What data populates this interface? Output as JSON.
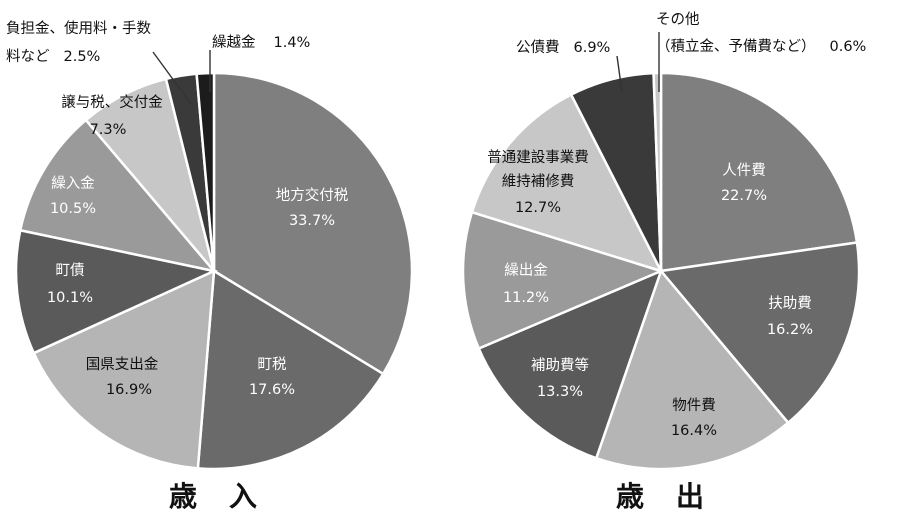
{
  "chart_data": [
    {
      "type": "pie",
      "title": "歳　入",
      "slices": [
        {
          "label": "地方交付税",
          "value": 33.7,
          "display": "33.7%",
          "color": "#7f7f7f"
        },
        {
          "label": "町税",
          "value": 17.6,
          "display": "17.6%",
          "color": "#6a6a6a"
        },
        {
          "label": "国県支出金",
          "value": 16.9,
          "display": "16.9%",
          "color": "#b5b5b5"
        },
        {
          "label": "町債",
          "value": 10.1,
          "display": "10.1%",
          "color": "#5a5a5a"
        },
        {
          "label": "繰入金",
          "value": 10.5,
          "display": "10.5%",
          "color": "#9a9a9a"
        },
        {
          "label": "譲与税、交付金",
          "value": 7.3,
          "display": "7.3%",
          "color": "#c7c7c7"
        },
        {
          "label": "負担金、使用料・手数料など",
          "value": 2.5,
          "display": "2.5%",
          "color": "#3a3a3a"
        },
        {
          "label": "繰越金",
          "value": 1.4,
          "display": "1.4%",
          "color": "#1c1c1c"
        }
      ]
    },
    {
      "type": "pie",
      "title": "歳　出",
      "slices": [
        {
          "label": "人件費",
          "value": 22.7,
          "display": "22.7%",
          "color": "#7f7f7f"
        },
        {
          "label": "扶助費",
          "value": 16.2,
          "display": "16.2%",
          "color": "#6a6a6a"
        },
        {
          "label": "物件費",
          "value": 16.4,
          "display": "16.4%",
          "color": "#b5b5b5"
        },
        {
          "label": "補助費等",
          "value": 13.3,
          "display": "13.3%",
          "color": "#5a5a5a"
        },
        {
          "label": "繰出金",
          "value": 11.2,
          "display": "11.2%",
          "color": "#9a9a9a"
        },
        {
          "label": "普通建設事業費維持補修費",
          "value": 12.7,
          "display": "12.7%",
          "color": "#c7c7c7"
        },
        {
          "label": "公債費",
          "value": 6.9,
          "display": "6.9%",
          "color": "#3a3a3a"
        },
        {
          "label": "その他（積立金、予備費など）",
          "value": 0.6,
          "display": "0.6%",
          "color": "#c7c7c7"
        }
      ]
    }
  ]
}
